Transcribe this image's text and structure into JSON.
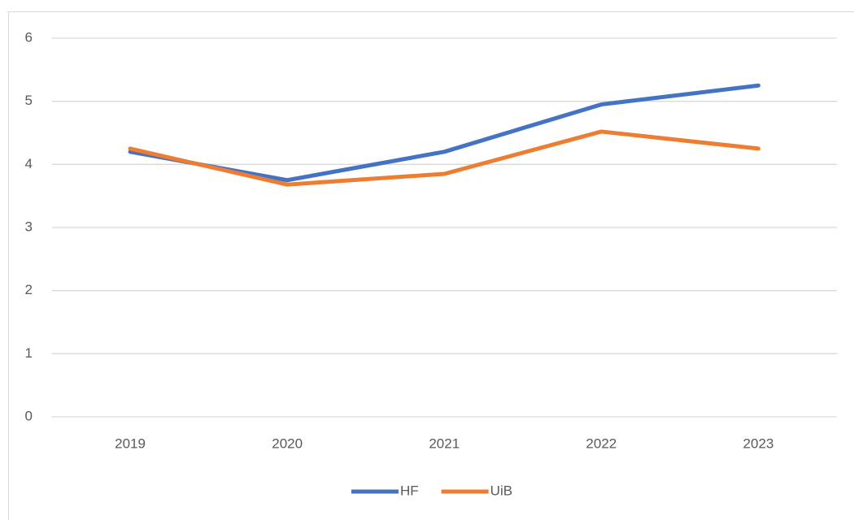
{
  "chart_data": {
    "type": "line",
    "categories": [
      "2019",
      "2020",
      "2021",
      "2022",
      "2023"
    ],
    "series": [
      {
        "name": "HF",
        "color": "#4472c4",
        "values": [
          4.2,
          3.75,
          4.2,
          4.95,
          5.25
        ]
      },
      {
        "name": "UiB",
        "color": "#ed7d31",
        "values": [
          4.25,
          3.68,
          3.85,
          4.52,
          4.25
        ]
      }
    ],
    "ylim": [
      0,
      6
    ],
    "yticks": [
      0,
      1,
      2,
      3,
      4,
      5,
      6
    ],
    "grid": true,
    "legend": "bottom"
  }
}
